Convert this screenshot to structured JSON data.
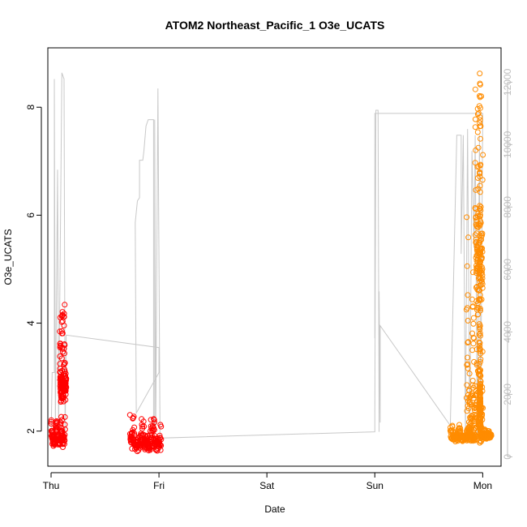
{
  "chart_data": {
    "type": "scatter",
    "title": "ATOM2 Northeast_Pacific_1 O3e_UCATS",
    "xlabel": "Date",
    "ylabel": "O3e_UCATS",
    "x_ticks": [
      "Thu",
      "Fri",
      "Sat",
      "Sun",
      "Mon"
    ],
    "xlim_days": [
      -0.03,
      4.17
    ],
    "ylim": [
      1.35,
      9.1
    ],
    "y_ticks": [
      2,
      4,
      6,
      8
    ],
    "y2_ticks": [
      0,
      2000,
      4000,
      6000,
      8000,
      10000,
      12000
    ],
    "y2lim": [
      -300,
      13100
    ],
    "colors": {
      "point_red": "#ff0000",
      "point_orange": "#ff8c00",
      "altitude_line": "#c8c8c8",
      "right_axis": "#bdbdbd"
    },
    "point_clusters": [
      {
        "color": "#ff0000",
        "x0": 0.0,
        "x1": 0.13,
        "y_low": [
          1.7,
          1.85
        ],
        "y_high": [
          2.1,
          2.3
        ],
        "n": 120
      },
      {
        "color": "#ff0000",
        "x0": 0.08,
        "x1": 0.14,
        "y_low": [
          2.5,
          2.8
        ],
        "y_high": [
          3.6,
          4.6
        ],
        "n": 140
      },
      {
        "color": "#ff0000",
        "x0": 0.73,
        "x1": 1.02,
        "y_low": [
          1.6,
          1.8
        ],
        "y_high": [
          1.9,
          2.5
        ],
        "n": 200
      },
      {
        "color": "#ff8c00",
        "x0": 3.97,
        "x1": 3.98,
        "y_low": [
          1.9,
          2.0
        ],
        "y_high": [
          5.7,
          8.8
        ],
        "n": 130
      },
      {
        "color": "#ff8c00",
        "x0": 3.98,
        "x1": 4.08,
        "y_low": [
          1.85,
          1.95
        ],
        "y_high": [
          1.95,
          2.05
        ],
        "n": 90
      },
      {
        "color": "#ff8c00",
        "x0": 3.7,
        "x1": 3.93,
        "y_low": [
          1.8,
          1.9
        ],
        "y_high": [
          2.0,
          2.15
        ],
        "n": 140
      },
      {
        "color": "#ff8c00",
        "x0": 3.85,
        "x1": 4.0,
        "y_low": [
          1.7,
          2.0
        ],
        "y_high": [
          4.5,
          6.5
        ],
        "n": 160
      },
      {
        "color": "#ff8c00",
        "x0": 3.93,
        "x1": 4.0,
        "y_low": [
          4.0,
          5.5
        ],
        "y_high": [
          7.0,
          8.9
        ],
        "n": 120
      }
    ],
    "altitude_line": [
      [
        0.0,
        400
      ],
      [
        0.01,
        2700
      ],
      [
        0.03,
        2700
      ],
      [
        0.03,
        12100
      ],
      [
        0.04,
        900
      ],
      [
        0.06,
        9200
      ],
      [
        0.07,
        900
      ],
      [
        0.1,
        12300
      ],
      [
        0.12,
        12100
      ],
      [
        0.13,
        600
      ],
      [
        0.14,
        3900
      ],
      [
        1.0,
        3500
      ],
      [
        1.0,
        2700
      ],
      [
        0.79,
        1400
      ],
      [
        0.78,
        7500
      ],
      [
        0.8,
        8200
      ],
      [
        0.82,
        8300
      ],
      [
        0.82,
        9500
      ],
      [
        0.85,
        9500
      ],
      [
        0.86,
        9800
      ],
      [
        0.88,
        10600
      ],
      [
        0.9,
        10800
      ],
      [
        0.95,
        10800
      ],
      [
        0.95,
        700
      ],
      [
        0.96,
        800
      ],
      [
        0.96,
        10800
      ],
      [
        0.97,
        900
      ],
      [
        0.99,
        11800
      ],
      [
        1.01,
        600
      ],
      [
        3.0,
        800
      ],
      [
        3.0,
        1400
      ],
      [
        3.01,
        11100
      ],
      [
        3.03,
        11100
      ],
      [
        3.04,
        800
      ],
      [
        3.04,
        5300
      ],
      [
        3.05,
        1100
      ],
      [
        3.05,
        4200
      ],
      [
        3.7,
        1000
      ],
      [
        3.76,
        10300
      ],
      [
        3.8,
        10300
      ],
      [
        3.8,
        6500
      ],
      [
        3.82,
        10300
      ],
      [
        3.84,
        700
      ],
      [
        3.86,
        10500
      ],
      [
        3.88,
        700
      ],
      [
        3.9,
        9800
      ],
      [
        3.92,
        6700
      ],
      [
        3.93,
        10300
      ],
      [
        3.95,
        700
      ],
      [
        3.97,
        10300
      ],
      [
        3.98,
        700
      ],
      [
        4.0,
        11000
      ],
      [
        3.0,
        11000
      ],
      [
        3.0,
        3800
      ]
    ]
  }
}
